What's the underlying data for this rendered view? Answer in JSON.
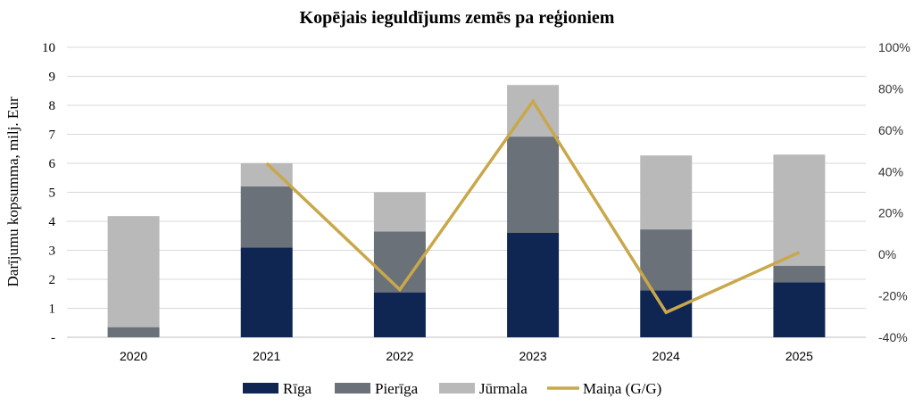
{
  "chart_data": {
    "type": "bar",
    "title": "Kopējais ieguldījums zemēs pa reģioniem",
    "ylabel": "Darījumu kopsumma, milj. Eur",
    "categories": [
      "2020",
      "2021",
      "2022",
      "2023",
      "2024",
      "2025"
    ],
    "ylim": [
      0,
      10
    ],
    "y_ticks": [
      "-",
      "1",
      "2",
      "3",
      "4",
      "5",
      "6",
      "7",
      "8",
      "9",
      "10"
    ],
    "y2lim": [
      -40,
      100
    ],
    "y2_ticks": [
      "-40%",
      "-20%",
      "0%",
      "20%",
      "40%",
      "60%",
      "80%",
      "100%"
    ],
    "stacked": true,
    "series": [
      {
        "name": "Rīga",
        "color": "#0f2652",
        "values": [
          0,
          3.1,
          1.55,
          3.6,
          1.62,
          1.9
        ]
      },
      {
        "name": "Pierīga",
        "color": "#6b7178",
        "values": [
          0.35,
          2.1,
          2.1,
          3.32,
          2.1,
          0.57
        ]
      },
      {
        "name": "Jūrmala",
        "color": "#b9b9b9",
        "values": [
          3.83,
          0.8,
          1.35,
          1.78,
          2.55,
          3.83
        ]
      }
    ],
    "line_series": {
      "name": "Maiņa (G/G)",
      "color": "#c8a84b",
      "axis": "right",
      "values": [
        null,
        44,
        -17,
        74,
        -28,
        1
      ]
    },
    "grid": true,
    "legend": "bottom-center"
  }
}
